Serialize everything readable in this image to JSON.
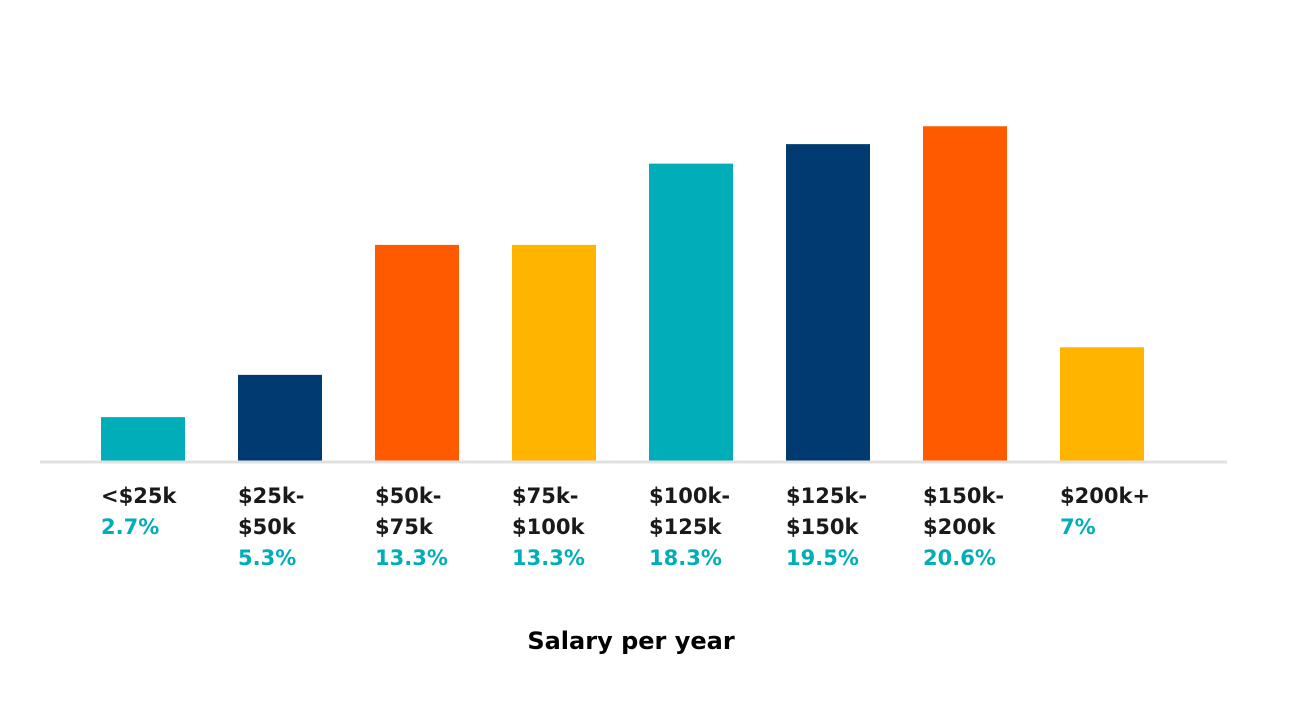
{
  "chart_data": {
    "type": "bar",
    "title": "",
    "xlabel": "Salary per year",
    "ylabel": "",
    "ylim": [
      0,
      22
    ],
    "grid": false,
    "legend": "none",
    "categories": [
      "<$25k",
      "$25k-$50k",
      "$50k-$75k",
      "$75k-$100k",
      "$100k-$125k",
      "$125k-$150k",
      "$150k-$200k",
      "$200k+"
    ],
    "tick_label_lines": [
      [
        "<$25k"
      ],
      [
        "$25k-",
        "$50k"
      ],
      [
        "$50k-",
        "$75k"
      ],
      [
        "$75k-",
        "$100k"
      ],
      [
        "$100k-",
        "$125k"
      ],
      [
        "$125k-",
        "$150k"
      ],
      [
        "$150k-",
        "$200k"
      ],
      [
        "$200k+"
      ]
    ],
    "values": [
      2.7,
      5.3,
      13.3,
      13.3,
      18.3,
      19.5,
      20.6,
      7
    ],
    "data_labels": [
      "2.7%",
      "5.3%",
      "13.3%",
      "13.3%",
      "18.3%",
      "19.5%",
      "20.6%",
      "7%"
    ],
    "bar_colors": [
      "#00adb8",
      "#003a70",
      "#ff5a00",
      "#ffb500",
      "#00adb8",
      "#003a70",
      "#ff5a00",
      "#ffb500"
    ],
    "label_color": "#00adb8",
    "baseline_color": "#e0e0e0"
  }
}
